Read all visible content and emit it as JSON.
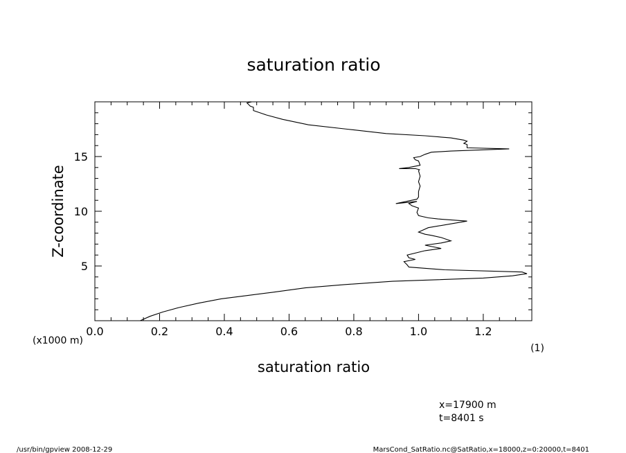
{
  "chart_data": {
    "type": "line",
    "title": "saturation ratio",
    "xlabel": "saturation ratio",
    "x_unit": "(1)",
    "ylabel": "Z-coordinate",
    "y_unit": "(x1000 m)",
    "xlim": [
      0.0,
      1.35
    ],
    "ylim": [
      0.0,
      20.0
    ],
    "x_ticks": [
      "0.0",
      "0.2",
      "0.4",
      "0.6",
      "0.8",
      "1.0",
      "1.2"
    ],
    "y_ticks": [
      "5",
      "10",
      "15"
    ],
    "grid": false,
    "series": [
      {
        "x": [
          0.14,
          0.17,
          0.21,
          0.26,
          0.32,
          0.39,
          0.47,
          0.55,
          0.65,
          0.77,
          0.92,
          1.06,
          1.2,
          1.29,
          1.335,
          1.32,
          1.08,
          0.97,
          0.965,
          0.955,
          0.99,
          0.97,
          0.965,
          1.02,
          1.07,
          1.02,
          1.07,
          1.1,
          1.07,
          1.04,
          1.02,
          1.0,
          1.03,
          1.15,
          1.06,
          1.03,
          1.0,
          0.995,
          1.0,
          0.98,
          0.97,
          0.995,
          0.93,
          0.995,
          1.0,
          1.0,
          1.005,
          1.0,
          1.005,
          1.0,
          1.003,
          0.99,
          0.94,
          0.97,
          1.005,
          1.0,
          0.99,
          0.985,
          1.005,
          1.02,
          1.04,
          1.1,
          1.28,
          1.15,
          1.15,
          1.14,
          1.15,
          1.14,
          1.1,
          1.02,
          0.9,
          0.78,
          0.66,
          0.58,
          0.53,
          0.49,
          0.49,
          0.48,
          0.47,
          0.485
        ],
        "y": [
          0.0,
          0.4,
          0.8,
          1.2,
          1.6,
          2.0,
          2.3,
          2.6,
          3.0,
          3.3,
          3.6,
          3.75,
          3.9,
          4.1,
          4.3,
          4.45,
          4.65,
          4.9,
          5.1,
          5.4,
          5.6,
          5.75,
          6.0,
          6.4,
          6.6,
          6.9,
          7.1,
          7.3,
          7.6,
          7.8,
          7.9,
          8.1,
          8.5,
          9.1,
          9.3,
          9.4,
          9.6,
          9.9,
          10.3,
          10.5,
          10.7,
          10.9,
          10.7,
          11.1,
          11.3,
          11.8,
          12.3,
          12.7,
          13.2,
          13.7,
          13.8,
          13.9,
          13.9,
          14.0,
          14.2,
          14.6,
          14.7,
          14.9,
          15.0,
          15.2,
          15.4,
          15.5,
          15.7,
          15.8,
          16.1,
          16.2,
          16.4,
          16.5,
          16.7,
          16.9,
          17.1,
          17.5,
          17.9,
          18.4,
          18.8,
          19.2,
          19.5,
          19.6,
          19.9,
          20.0
        ]
      }
    ]
  },
  "annotations": {
    "position": "x=17900 m",
    "time": "t=8401 s"
  },
  "footer": {
    "left": "/usr/bin/gpview   2008-12-29",
    "right": "MarsCond_SatRatio.nc@SatRatio,x=18000,z=0:20000,t=8401"
  }
}
